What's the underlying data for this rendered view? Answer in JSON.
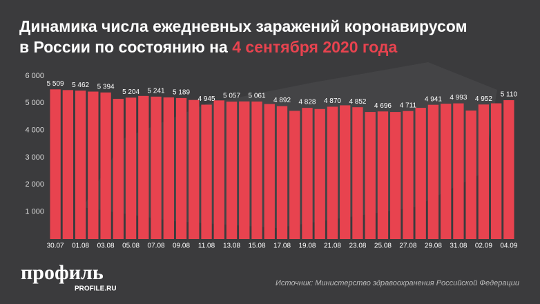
{
  "chart_data": {
    "type": "bar",
    "title": "Динамика числа ежедневных заражений коронавирусом",
    "title_line2": "в России по состоянию на",
    "title_highlight": "4 сентября 2020 года",
    "categories": [
      "30.07",
      null,
      "01.08",
      null,
      "03.08",
      null,
      "05.08",
      null,
      "07.08",
      null,
      "09.08",
      null,
      "11.08",
      null,
      "13.08",
      null,
      "15.08",
      null,
      "17.08",
      null,
      "19.08",
      null,
      "21.08",
      null,
      "23.08",
      null,
      "25.08",
      null,
      "27.08",
      null,
      "29.08",
      null,
      "31.08",
      null,
      "02.09",
      null,
      "04.09"
    ],
    "values": [
      5509,
      5482,
      5462,
      5427,
      5394,
      5159,
      5204,
      5267,
      5241,
      5212,
      5189,
      5118,
      4945,
      5102,
      5057,
      5065,
      5061,
      4969,
      4892,
      4718,
      4828,
      4785,
      4870,
      4921,
      4852,
      4676,
      4696,
      4676,
      4711,
      4829,
      4941,
      4980,
      4993,
      4729,
      4952,
      4995,
      5110
    ],
    "value_labels": [
      "5 509",
      null,
      "5 462",
      null,
      "5 394",
      null,
      "5 204",
      null,
      "5 241",
      null,
      "5 189",
      null,
      "4 945",
      null,
      "5 057",
      null,
      "5 061",
      null,
      "4 892",
      null,
      "4 828",
      null,
      "4 870",
      null,
      "4 852",
      null,
      "4 696",
      null,
      "4 711",
      null,
      "4 941",
      null,
      "4 993",
      null,
      "4 952",
      null,
      "5 110"
    ],
    "color": "#e8434f",
    "ylim": [
      0,
      6000
    ],
    "yticks": [
      {
        "value": 1000,
        "label": "1 000"
      },
      {
        "value": 2000,
        "label": "2 000"
      },
      {
        "value": 3000,
        "label": "3 000"
      },
      {
        "value": 4000,
        "label": "4 000"
      },
      {
        "value": 5000,
        "label": "5 000"
      },
      {
        "value": 6000,
        "label": "6 000"
      }
    ],
    "source": "Источник: Министерство здравоохранения Российской Федерации",
    "logo": "профиль",
    "logo_site": "PROFILE.RU"
  }
}
